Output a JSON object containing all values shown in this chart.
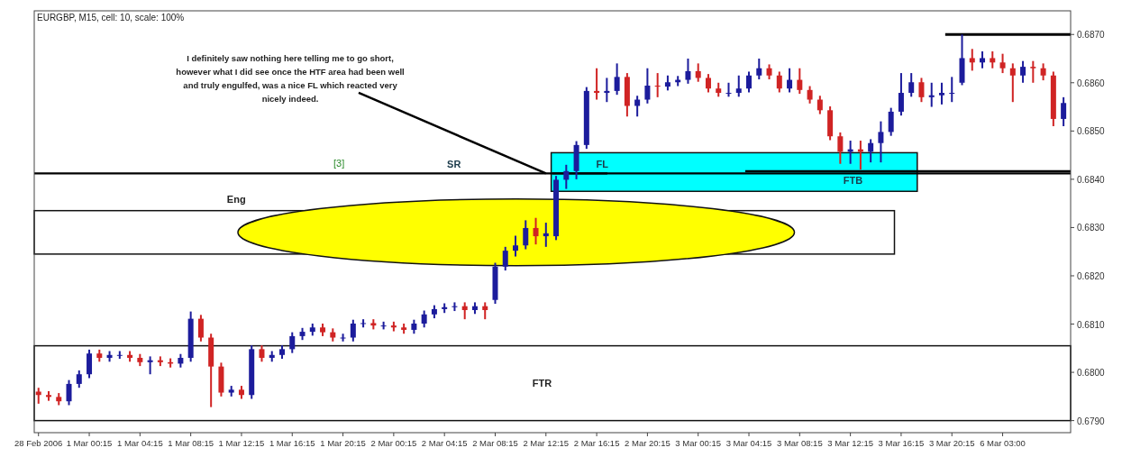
{
  "chart_data": {
    "type": "candlestick",
    "title": "EURGBP, M15, cell: 10, scale: 100%",
    "categories": [
      "28 Feb 2006",
      null,
      null,
      null,
      null,
      "1 Mar 00:15",
      null,
      null,
      null,
      null,
      "1 Mar 04:15",
      null,
      null,
      null,
      null,
      "1 Mar 08:15",
      null,
      null,
      null,
      null,
      "1 Mar 12:15",
      null,
      null,
      null,
      null,
      "1 Mar 16:15",
      null,
      null,
      null,
      null,
      "1 Mar 20:15",
      null,
      null,
      null,
      null,
      "2 Mar 00:15",
      null,
      null,
      null,
      null,
      "2 Mar 04:15",
      null,
      null,
      null,
      null,
      "2 Mar 08:15",
      null,
      null,
      null,
      null,
      "2 Mar 12:15",
      null,
      null,
      null,
      null,
      "2 Mar 16:15",
      null,
      null,
      null,
      null,
      "2 Mar 20:15",
      null,
      null,
      null,
      null,
      "3 Mar 00:15",
      null,
      null,
      null,
      null,
      "3 Mar 04:15",
      null,
      null,
      null,
      null,
      "3 Mar 08:15",
      null,
      null,
      null,
      null,
      "3 Mar 12:15",
      null,
      null,
      null,
      null,
      "3 Mar 16:15",
      null,
      null,
      null,
      null,
      "3 Mar 20:15",
      null,
      null,
      null,
      null,
      "6 Mar 03:00",
      null,
      null,
      null,
      null,
      null,
      null
    ],
    "ohlc": [
      [
        0.6796,
        0.67968,
        0.67935,
        0.67953
      ],
      [
        0.67953,
        0.67961,
        0.67941,
        0.67949
      ],
      [
        0.67949,
        0.67957,
        0.67932,
        0.6794
      ],
      [
        0.6794,
        0.67984,
        0.67932,
        0.67976
      ],
      [
        0.67976,
        0.68004,
        0.67968,
        0.67996
      ],
      [
        0.67996,
        0.68047,
        0.67988,
        0.68039
      ],
      [
        0.68039,
        0.68047,
        0.68022,
        0.6803
      ],
      [
        0.6803,
        0.68044,
        0.68022,
        0.68036
      ],
      [
        0.68036,
        0.68044,
        0.68028,
        0.68036
      ],
      [
        0.68036,
        0.68044,
        0.68022,
        0.6803
      ],
      [
        0.6803,
        0.68038,
        0.68013,
        0.68021
      ],
      [
        0.68021,
        0.68033,
        0.67996,
        0.68025
      ],
      [
        0.68025,
        0.68033,
        0.68013,
        0.68021
      ],
      [
        0.68021,
        0.68029,
        0.6801,
        0.68018
      ],
      [
        0.68018,
        0.68038,
        0.6801,
        0.6803
      ],
      [
        0.6803,
        0.68126,
        0.68022,
        0.68111
      ],
      [
        0.68111,
        0.68119,
        0.68064,
        0.68072
      ],
      [
        0.68072,
        0.6808,
        0.67928,
        0.68012
      ],
      [
        0.68012,
        0.6802,
        0.6795,
        0.67958
      ],
      [
        0.67958,
        0.67972,
        0.6795,
        0.67964
      ],
      [
        0.67964,
        0.67972,
        0.67945,
        0.67953
      ],
      [
        0.67953,
        0.68056,
        0.67945,
        0.68048
      ],
      [
        0.68048,
        0.68056,
        0.68022,
        0.6803
      ],
      [
        0.6803,
        0.68044,
        0.68022,
        0.68036
      ],
      [
        0.68036,
        0.68056,
        0.68028,
        0.68048
      ],
      [
        0.68048,
        0.68083,
        0.6804,
        0.68075
      ],
      [
        0.68075,
        0.68092,
        0.68067,
        0.68084
      ],
      [
        0.68084,
        0.68101,
        0.68076,
        0.68093
      ],
      [
        0.68093,
        0.68101,
        0.68075,
        0.68083
      ],
      [
        0.68083,
        0.68091,
        0.68064,
        0.68072
      ],
      [
        0.68072,
        0.6808,
        0.68064,
        0.68072
      ],
      [
        0.68072,
        0.68109,
        0.68064,
        0.68101
      ],
      [
        0.68101,
        0.6811,
        0.68093,
        0.68102
      ],
      [
        0.68102,
        0.6811,
        0.68089,
        0.68097
      ],
      [
        0.68097,
        0.68105,
        0.68089,
        0.68097
      ],
      [
        0.68097,
        0.68105,
        0.68085,
        0.68093
      ],
      [
        0.68093,
        0.68101,
        0.6808,
        0.68088
      ],
      [
        0.68088,
        0.68109,
        0.6808,
        0.68101
      ],
      [
        0.68101,
        0.68128,
        0.68093,
        0.6812
      ],
      [
        0.6812,
        0.68139,
        0.68112,
        0.68131
      ],
      [
        0.68131,
        0.68143,
        0.68123,
        0.68135
      ],
      [
        0.68135,
        0.68145,
        0.68127,
        0.68137
      ],
      [
        0.68137,
        0.68145,
        0.6811,
        0.68129
      ],
      [
        0.68129,
        0.68145,
        0.68121,
        0.68137
      ],
      [
        0.68137,
        0.68145,
        0.6811,
        0.68129
      ],
      [
        0.6815,
        0.68227,
        0.68142,
        0.68219
      ],
      [
        0.68219,
        0.6826,
        0.68211,
        0.68252
      ],
      [
        0.68252,
        0.68283,
        0.6824,
        0.68263
      ],
      [
        0.68263,
        0.68315,
        0.68255,
        0.68299
      ],
      [
        0.68299,
        0.6832,
        0.68265,
        0.68282
      ],
      [
        0.68282,
        0.6831,
        0.6826,
        0.68288
      ],
      [
        0.68282,
        0.68407,
        0.68274,
        0.68399
      ],
      [
        0.68399,
        0.6843,
        0.6838,
        0.68417
      ],
      [
        0.68417,
        0.68479,
        0.684,
        0.68471
      ],
      [
        0.68471,
        0.68591,
        0.68463,
        0.68583
      ],
      [
        0.68583,
        0.6863,
        0.68565,
        0.68579
      ],
      [
        0.68579,
        0.6861,
        0.6856,
        0.68583
      ],
      [
        0.68583,
        0.6864,
        0.68575,
        0.68612
      ],
      [
        0.68612,
        0.6862,
        0.6853,
        0.68552
      ],
      [
        0.68552,
        0.68573,
        0.6853,
        0.68565
      ],
      [
        0.68565,
        0.6863,
        0.68557,
        0.68594
      ],
      [
        0.68594,
        0.6862,
        0.6857,
        0.68592
      ],
      [
        0.68592,
        0.68615,
        0.68584,
        0.68601
      ],
      [
        0.68601,
        0.68614,
        0.68593,
        0.68606
      ],
      [
        0.68606,
        0.6865,
        0.68598,
        0.68624
      ],
      [
        0.68624,
        0.6864,
        0.68602,
        0.6861
      ],
      [
        0.6861,
        0.68618,
        0.6858,
        0.68588
      ],
      [
        0.68588,
        0.686,
        0.68571,
        0.68579
      ],
      [
        0.68579,
        0.686,
        0.68571,
        0.68579
      ],
      [
        0.68579,
        0.68615,
        0.68571,
        0.68588
      ],
      [
        0.68588,
        0.68623,
        0.6858,
        0.68615
      ],
      [
        0.68615,
        0.6865,
        0.68607,
        0.6863
      ],
      [
        0.6863,
        0.68638,
        0.68607,
        0.68615
      ],
      [
        0.68615,
        0.68623,
        0.6858,
        0.68588
      ],
      [
        0.68588,
        0.6863,
        0.6858,
        0.68606
      ],
      [
        0.68606,
        0.6863,
        0.68577,
        0.68585
      ],
      [
        0.68585,
        0.68593,
        0.68557,
        0.68565
      ],
      [
        0.68565,
        0.68573,
        0.68535,
        0.68543
      ],
      [
        0.68543,
        0.68551,
        0.68481,
        0.68489
      ],
      [
        0.68489,
        0.68497,
        0.68432,
        0.68457
      ],
      [
        0.68457,
        0.6848,
        0.68432,
        0.68462
      ],
      [
        0.68462,
        0.6848,
        0.6842,
        0.68457
      ],
      [
        0.68457,
        0.68483,
        0.68435,
        0.68475
      ],
      [
        0.68475,
        0.6852,
        0.68435,
        0.68498
      ],
      [
        0.68498,
        0.68548,
        0.6849,
        0.6854
      ],
      [
        0.6854,
        0.6862,
        0.68532,
        0.68579
      ],
      [
        0.68579,
        0.6862,
        0.68571,
        0.68601
      ],
      [
        0.68601,
        0.6861,
        0.6856,
        0.6857
      ],
      [
        0.6857,
        0.686,
        0.6855,
        0.68574
      ],
      [
        0.68574,
        0.686,
        0.68555,
        0.68579
      ],
      [
        0.68579,
        0.68612,
        0.6856,
        0.68579
      ],
      [
        0.686,
        0.687,
        0.68595,
        0.68651
      ],
      [
        0.68651,
        0.6867,
        0.68625,
        0.68642
      ],
      [
        0.68642,
        0.68665,
        0.6863,
        0.68651
      ],
      [
        0.68651,
        0.68665,
        0.6863,
        0.68642
      ],
      [
        0.68642,
        0.6866,
        0.6862,
        0.6863
      ],
      [
        0.6863,
        0.6864,
        0.6856,
        0.68615
      ],
      [
        0.68615,
        0.68645,
        0.686,
        0.68633
      ],
      [
        0.68633,
        0.68645,
        0.686,
        0.6863
      ],
      [
        0.6863,
        0.6864,
        0.68605,
        0.68615
      ],
      [
        0.68615,
        0.68623,
        0.6851,
        0.68525
      ],
      [
        0.68525,
        0.6857,
        0.6851,
        0.68558
      ]
    ],
    "colors": [
      "#d02424",
      "#d02424",
      "#d02424",
      "#1c1c9c",
      "#1c1c9c",
      "#1c1c9c",
      "#d02424",
      "#1c1c9c",
      "#1c1c9c",
      "#d02424",
      "#d02424",
      "#1c1c9c",
      "#d02424",
      "#d02424",
      "#1c1c9c",
      "#1c1c9c",
      "#d02424",
      "#d02424",
      "#d02424",
      "#1c1c9c",
      "#d02424",
      "#1c1c9c",
      "#d02424",
      "#1c1c9c",
      "#1c1c9c",
      "#1c1c9c",
      "#1c1c9c",
      "#1c1c9c",
      "#d02424",
      "#d02424",
      "#1c1c9c",
      "#1c1c9c",
      "#1c1c9c",
      "#d02424",
      "#1c1c9c",
      "#d02424",
      "#d02424",
      "#1c1c9c",
      "#1c1c9c",
      "#1c1c9c",
      "#1c1c9c",
      "#1c1c9c",
      "#d02424",
      "#1c1c9c",
      "#d02424",
      "#1c1c9c",
      "#1c1c9c",
      "#1c1c9c",
      "#1c1c9c",
      "#d02424",
      "#1c1c9c",
      "#1c1c9c",
      "#1c1c9c",
      "#1c1c9c",
      "#1c1c9c",
      "#d02424",
      "#1c1c9c",
      "#1c1c9c",
      "#d02424",
      "#1c1c9c",
      "#1c1c9c",
      "#d02424",
      "#1c1c9c",
      "#1c1c9c",
      "#1c1c9c",
      "#d02424",
      "#d02424",
      "#d02424",
      "#1c1c9c",
      "#1c1c9c",
      "#1c1c9c",
      "#1c1c9c",
      "#d02424",
      "#d02424",
      "#1c1c9c",
      "#d02424",
      "#d02424",
      "#d02424",
      "#d02424",
      "#d02424",
      "#1c1c9c",
      "#d02424",
      "#1c1c9c",
      "#1c1c9c",
      "#1c1c9c",
      "#1c1c9c",
      "#1c1c9c",
      "#d02424",
      "#1c1c9c",
      "#1c1c9c",
      "#1c1c9c",
      "#1c1c9c",
      "#d02424",
      "#1c1c9c",
      "#d02424",
      "#d02424",
      "#d02424",
      "#1c1c9c",
      "#d02424",
      "#d02424",
      "#d02424",
      "#1c1c9c"
    ],
    "ylim": [
      0.67875,
      0.68749
    ],
    "yticks": [
      {
        "value": 0.679,
        "label": "0.6790"
      },
      {
        "value": 0.68,
        "label": "0.6800"
      },
      {
        "value": 0.681,
        "label": "0.6810"
      },
      {
        "value": 0.682,
        "label": "0.6820"
      },
      {
        "value": 0.683,
        "label": "0.6830"
      },
      {
        "value": 0.684,
        "label": "0.6840"
      },
      {
        "value": 0.685,
        "label": "0.6850"
      },
      {
        "value": 0.686,
        "label": "0.6860"
      },
      {
        "value": 0.687,
        "label": "0.6870"
      }
    ],
    "bands": [
      {
        "axis": "y",
        "from": 0.68245,
        "to": 0.68335,
        "label": "Eng",
        "color": "#ffffff"
      },
      {
        "axis": "y",
        "from": 0.68375,
        "to": 0.68455,
        "color": "#00ffff"
      },
      {
        "axis": "y",
        "from": 0.679,
        "to": 0.68055,
        "label": "FTR",
        "color": "#ffffff"
      }
    ],
    "ref_lines": [
      {
        "axis": "y",
        "value": 0.68412,
        "label": "SR"
      },
      {
        "axis": "y",
        "value": 0.68412,
        "label": "FL"
      },
      {
        "axis": "y",
        "value": 0.68417,
        "label": "FTB"
      },
      {
        "axis": "y",
        "value": 0.687,
        "label": null
      }
    ],
    "annotations": [
      {
        "text": "I definitely saw nothing here telling me to go short, however what I did see once the HTF area had been well and truly engulfed, was a nice FL which reacted very nicely indeed.",
        "x": "2 Mar 12:15",
        "y": 0.68412
      },
      "[3]"
    ]
  }
}
